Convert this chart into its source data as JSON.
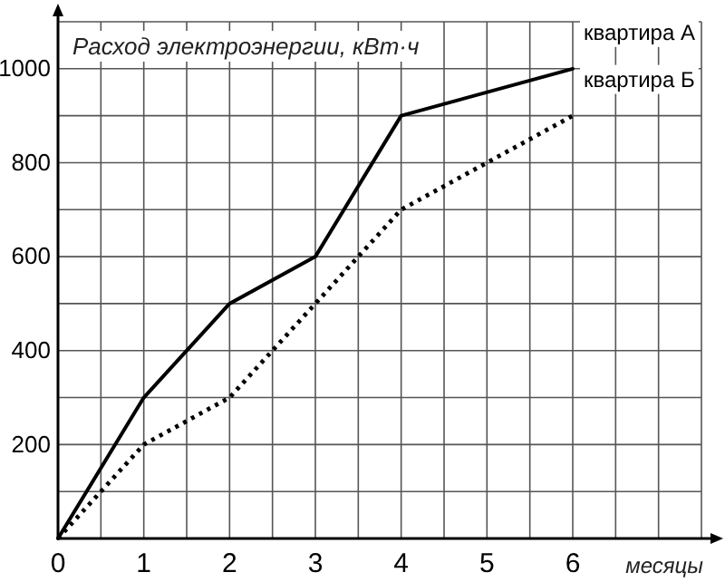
{
  "chart_data": {
    "type": "line",
    "ylabel": "Расход электроэнергии, кВт·ч",
    "xlabel": "месяцы",
    "xlim": [
      0,
      7.5
    ],
    "xticks": [
      0,
      {
        "value": 0.5,
        "label": null
      },
      1,
      {
        "value": 1.5,
        "label": null
      },
      2,
      {
        "value": 2.5,
        "label": null
      },
      3,
      {
        "value": 3.5,
        "label": null
      },
      4,
      {
        "value": 4.5,
        "label": null
      },
      5,
      {
        "value": 5.5,
        "label": null
      },
      6,
      {
        "value": 6.5,
        "label": null
      },
      {
        "value": 7,
        "label": null
      },
      {
        "value": 7.5,
        "label": null
      }
    ],
    "ylim": [
      0,
      1100
    ],
    "yticks": [
      {
        "value": 0,
        "label": null
      },
      {
        "value": 100,
        "label": null
      },
      200,
      {
        "value": 300,
        "label": null
      },
      400,
      {
        "value": 500,
        "label": null
      },
      600,
      {
        "value": 700,
        "label": null
      },
      800,
      {
        "value": 900,
        "label": null
      },
      1000,
      {
        "value": 1100,
        "label": null
      }
    ],
    "grid": true,
    "legend": false,
    "series": [
      {
        "name": "квартира А",
        "color": "#000000",
        "line_style": "solid",
        "x": [
          0,
          1,
          2,
          3,
          4,
          6
        ],
        "values": [
          0,
          300,
          500,
          600,
          900,
          1000
        ]
      },
      {
        "name": "квартира Б",
        "color": "#000000",
        "line_style": "dotted",
        "x": [
          0,
          1,
          2,
          3,
          4,
          6
        ],
        "values": [
          0,
          200,
          300,
          500,
          700,
          900
        ]
      }
    ]
  }
}
